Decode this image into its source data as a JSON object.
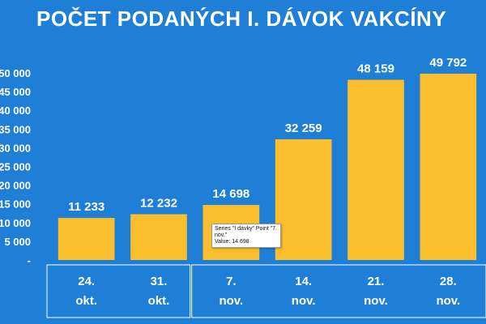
{
  "title": "POČET PODANÝCH I. DÁVOK VAKCÍNY",
  "colors": {
    "background": "#1f7fd6",
    "bar": "#fbbf2d",
    "text": "#ffffff"
  },
  "tooltip": {
    "line1": "Series \"I dávky\" Point \"7.",
    "line2": "nov.\"",
    "line3": "Value:  14 698"
  },
  "chart_data": {
    "type": "bar",
    "title": "POČET PODANÝCH I. DÁVOK VAKCÍNY",
    "categories": [
      "24. okt.",
      "31. okt.",
      "7. nov.",
      "14. nov.",
      "21. nov.",
      "28. nov."
    ],
    "category_lines": [
      [
        "24.",
        "okt."
      ],
      [
        "31.",
        "okt."
      ],
      [
        "7.",
        "nov."
      ],
      [
        "14.",
        "nov."
      ],
      [
        "21.",
        "nov."
      ],
      [
        "28.",
        "nov."
      ]
    ],
    "series": [
      {
        "values": [
          11233,
          12232,
          14698,
          32259,
          48159,
          49792
        ]
      }
    ],
    "value_labels": [
      "11 233",
      "12 232",
      "14 698",
      "32 259",
      "48 159",
      "49 792"
    ],
    "yticks": [
      0,
      5000,
      10000,
      15000,
      20000,
      25000,
      30000,
      35000,
      40000,
      45000,
      50000
    ],
    "ytick_labels": [
      "-",
      "5 000",
      "10 000",
      "15 000",
      "20 000",
      "25 000",
      "30 000",
      "35 000",
      "40 000",
      "45 000",
      "50 000"
    ],
    "ylim": [
      0,
      50000
    ],
    "xlabel": "",
    "ylabel": "",
    "grid": false,
    "legend": "none"
  }
}
